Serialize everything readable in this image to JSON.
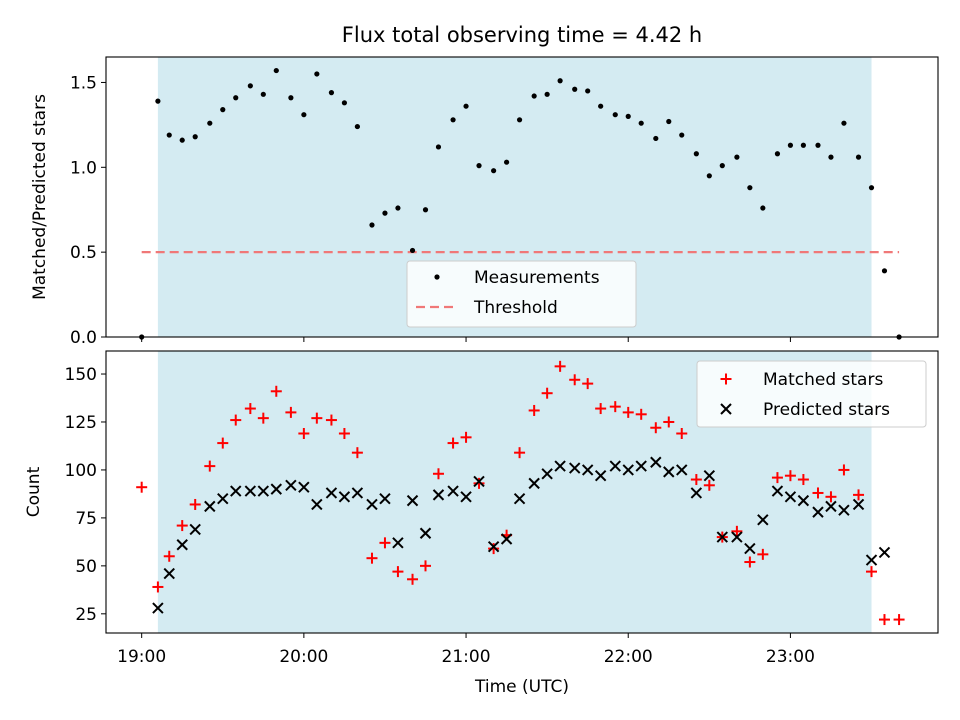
{
  "chart_data": [
    {
      "type": "scatter",
      "panel": "top",
      "title": "Flux total observing time = 4.42 h",
      "xlabel": "",
      "ylabel": "Matched/Predicted stars",
      "x_unit": "hours UTC",
      "xlim": [
        18.78,
        23.91
      ],
      "ylim": [
        0.0,
        1.65
      ],
      "yticks": [
        0.0,
        0.5,
        1.0,
        1.5
      ],
      "ytick_labels": [
        "0.0",
        "0.5",
        "1.0",
        "1.5"
      ],
      "observing_window": [
        19.1,
        23.5
      ],
      "threshold": {
        "name": "Threshold",
        "value": 0.5,
        "x_range": [
          19.0,
          23.67
        ],
        "color": "#f07878"
      },
      "legend": {
        "placement": "lower-center",
        "entries": [
          "Measurements",
          "Threshold"
        ]
      },
      "series": [
        {
          "name": "Measurements",
          "color": "#000000",
          "x": [
            19.0,
            19.1,
            19.17,
            19.25,
            19.33,
            19.42,
            19.5,
            19.58,
            19.67,
            19.75,
            19.83,
            19.92,
            20.0,
            20.08,
            20.17,
            20.25,
            20.33,
            20.42,
            20.5,
            20.58,
            20.67,
            20.75,
            20.83,
            20.92,
            21.0,
            21.08,
            21.17,
            21.25,
            21.33,
            21.42,
            21.5,
            21.58,
            21.67,
            21.75,
            21.83,
            21.92,
            22.0,
            22.08,
            22.17,
            22.25,
            22.33,
            22.42,
            22.5,
            22.58,
            22.67,
            22.75,
            22.83,
            22.92,
            23.0,
            23.08,
            23.17,
            23.25,
            23.33,
            23.42,
            23.5,
            23.58,
            23.67
          ],
          "y": [
            0.0,
            1.39,
            1.19,
            1.16,
            1.18,
            1.26,
            1.34,
            1.41,
            1.48,
            1.43,
            1.57,
            1.41,
            1.31,
            1.55,
            1.44,
            1.38,
            1.24,
            0.66,
            0.73,
            0.76,
            0.51,
            0.75,
            1.12,
            1.28,
            1.36,
            1.01,
            0.98,
            1.03,
            1.28,
            1.42,
            1.43,
            1.51,
            1.46,
            1.45,
            1.36,
            1.31,
            1.3,
            1.26,
            1.17,
            1.27,
            1.19,
            1.08,
            0.95,
            1.01,
            1.06,
            0.88,
            0.76,
            1.08,
            1.13,
            1.13,
            1.13,
            1.06,
            1.26,
            1.06,
            0.88,
            0.39,
            0.0
          ]
        }
      ]
    },
    {
      "type": "scatter",
      "panel": "bottom",
      "title": "",
      "xlabel": "Time (UTC)",
      "ylabel": "Count",
      "x_unit": "hours UTC",
      "xlim": [
        18.78,
        23.91
      ],
      "ylim": [
        15.0,
        162.0
      ],
      "yticks": [
        25,
        50,
        75,
        100,
        125,
        150
      ],
      "ytick_labels": [
        "25",
        "50",
        "75",
        "100",
        "125",
        "150"
      ],
      "xticks": [
        19,
        20,
        21,
        22,
        23
      ],
      "xtick_labels": [
        "19:00",
        "20:00",
        "21:00",
        "22:00",
        "23:00"
      ],
      "observing_window": [
        19.1,
        23.5
      ],
      "legend": {
        "placement": "top-right",
        "entries": [
          "Matched stars",
          "Predicted stars"
        ]
      },
      "series": [
        {
          "name": "Matched stars",
          "marker": "plus",
          "color": "#ff0000",
          "x": [
            19.0,
            19.1,
            19.17,
            19.25,
            19.33,
            19.42,
            19.5,
            19.58,
            19.67,
            19.75,
            19.83,
            19.92,
            20.0,
            20.08,
            20.17,
            20.25,
            20.33,
            20.42,
            20.5,
            20.58,
            20.67,
            20.75,
            20.83,
            20.92,
            21.0,
            21.08,
            21.17,
            21.25,
            21.33,
            21.42,
            21.5,
            21.58,
            21.67,
            21.75,
            21.83,
            21.92,
            22.0,
            22.08,
            22.17,
            22.25,
            22.33,
            22.42,
            22.5,
            22.58,
            22.67,
            22.75,
            22.83,
            22.92,
            23.0,
            23.08,
            23.17,
            23.25,
            23.33,
            23.42,
            23.5,
            23.58,
            23.67
          ],
          "y": [
            91,
            39,
            55,
            71,
            82,
            102,
            114,
            126,
            132,
            127,
            141,
            130,
            119,
            127,
            126,
            119,
            109,
            54,
            62,
            47,
            43,
            50,
            98,
            114,
            117,
            93,
            59,
            66,
            109,
            131,
            140,
            154,
            147,
            145,
            132,
            133,
            130,
            129,
            122,
            125,
            119,
            95,
            92,
            65,
            68,
            52,
            56,
            96,
            97,
            95,
            88,
            86,
            100,
            87,
            47,
            22,
            22
          ]
        },
        {
          "name": "Predicted stars",
          "marker": "x",
          "color": "#000000",
          "x": [
            19.1,
            19.17,
            19.25,
            19.33,
            19.42,
            19.5,
            19.58,
            19.67,
            19.75,
            19.83,
            19.92,
            20.0,
            20.08,
            20.17,
            20.25,
            20.33,
            20.42,
            20.5,
            20.58,
            20.67,
            20.75,
            20.83,
            20.92,
            21.0,
            21.08,
            21.17,
            21.25,
            21.33,
            21.42,
            21.5,
            21.58,
            21.67,
            21.75,
            21.83,
            21.92,
            22.0,
            22.08,
            22.17,
            22.25,
            22.33,
            22.42,
            22.5,
            22.58,
            22.67,
            22.75,
            22.83,
            22.92,
            23.0,
            23.08,
            23.17,
            23.25,
            23.33,
            23.42,
            23.5,
            23.58
          ],
          "y": [
            28,
            46,
            61,
            69,
            81,
            85,
            89,
            89,
            89,
            90,
            92,
            91,
            82,
            88,
            86,
            88,
            82,
            85,
            62,
            84,
            67,
            87,
            89,
            86,
            94,
            60,
            64,
            85,
            93,
            98,
            102,
            101,
            100,
            97,
            102,
            100,
            102,
            104,
            99,
            100,
            88,
            97,
            65,
            65,
            59,
            74,
            89,
            86,
            84,
            78,
            81,
            79,
            82,
            53,
            57
          ]
        }
      ]
    }
  ]
}
